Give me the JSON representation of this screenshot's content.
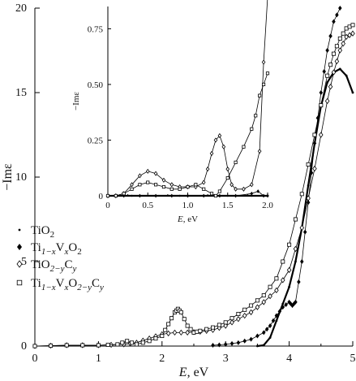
{
  "chart_data": [
    {
      "type": "line",
      "xlabel": "E, eV",
      "ylabel": "−Imε",
      "xlim": [
        0,
        5
      ],
      "ylim": [
        0,
        20
      ],
      "x_ticks": [
        "0",
        "1",
        "2",
        "3",
        "4",
        "5"
      ],
      "y_ticks": [
        "0",
        "5",
        "10",
        "15",
        "20"
      ],
      "grid": false,
      "legend_position": "left-middle",
      "series": [
        {
          "name": "TiO2",
          "legend_base": "TiO",
          "legend_sub": "2",
          "marker": "small-dot",
          "x": [
            3.5,
            3.6,
            3.7,
            3.8,
            3.9,
            4.0,
            4.1,
            4.2,
            4.3,
            4.4,
            4.5,
            4.6,
            4.7,
            4.8,
            4.9,
            5.0
          ],
          "values": [
            0.0,
            0.05,
            0.5,
            1.5,
            2.5,
            3.5,
            5.0,
            7.0,
            9.5,
            12.0,
            14.2,
            15.6,
            16.2,
            16.4,
            16.0,
            15.0
          ]
        },
        {
          "name": "Ti1−xVxO2",
          "legend_base": "Ti",
          "legend_sub": "1−x",
          "legend_mid": "V",
          "legend_sub2": "x",
          "legend_mid2": "O",
          "legend_sub3": "2",
          "marker": "filled-diamond",
          "x": [
            2.8,
            3.0,
            3.2,
            3.4,
            3.6,
            3.7,
            3.8,
            3.9,
            4.0,
            4.05,
            4.1,
            4.2,
            4.3,
            4.4,
            4.5,
            4.6,
            4.7,
            4.8
          ],
          "values": [
            0.05,
            0.1,
            0.2,
            0.4,
            0.8,
            1.2,
            1.8,
            2.3,
            2.6,
            2.4,
            2.6,
            5.0,
            8.5,
            12.0,
            15.0,
            17.5,
            19.2,
            20.0
          ]
        },
        {
          "name": "TiO2−yCy",
          "legend_base": "TiO",
          "legend_sub": "2−y",
          "legend_mid": "C",
          "legend_sub2": "y",
          "marker": "open-diamond",
          "x": [
            0.0,
            0.5,
            1.0,
            1.4,
            1.6,
            1.8,
            2.0,
            2.2,
            2.4,
            2.6,
            2.8,
            3.0,
            3.2,
            3.4,
            3.6,
            3.8,
            4.0,
            4.2,
            4.4,
            4.6,
            4.7,
            4.8,
            4.9,
            5.0
          ],
          "values": [
            0.0,
            0.05,
            0.05,
            0.1,
            0.2,
            0.45,
            0.7,
            0.8,
            0.8,
            0.85,
            0.95,
            1.2,
            1.6,
            2.0,
            2.6,
            3.3,
            4.5,
            7.0,
            10.5,
            14.5,
            16.2,
            17.5,
            18.3,
            18.5
          ]
        },
        {
          "name": "Ti1−xVxO2−yCy",
          "legend_base": "Ti",
          "legend_sub": "1−x",
          "legend_mid": "V",
          "legend_sub2": "x",
          "legend_mid2": "O",
          "legend_sub3": "2−y",
          "legend_mid3": "C",
          "legend_sub4": "y",
          "marker": "open-square",
          "x": [
            0.0,
            0.5,
            1.0,
            1.3,
            1.45,
            1.6,
            1.8,
            2.0,
            2.1,
            2.2,
            2.25,
            2.3,
            2.4,
            2.5,
            2.6,
            2.8,
            3.0,
            3.2,
            3.4,
            3.6,
            3.8,
            4.0,
            4.2,
            4.4,
            4.6,
            4.7,
            4.8,
            4.9,
            5.0
          ],
          "values": [
            0.0,
            0.05,
            0.05,
            0.1,
            0.3,
            0.1,
            0.3,
            0.6,
            1.3,
            2.0,
            2.2,
            2.0,
            1.2,
            0.8,
            0.9,
            1.1,
            1.4,
            1.9,
            2.4,
            3.0,
            4.0,
            6.0,
            9.0,
            12.5,
            16.0,
            17.3,
            18.2,
            18.8,
            19.0
          ]
        }
      ]
    },
    {
      "type": "line",
      "xlabel": "E, eV",
      "ylabel": "−Imε",
      "xlim": [
        0,
        2.0
      ],
      "ylim": [
        0,
        0.85
      ],
      "x_ticks": [
        "0",
        "0.5",
        "1.0",
        "1.5",
        "2.0"
      ],
      "y_ticks": [
        "0",
        "0.25",
        "0.50",
        "0.75"
      ],
      "grid": false,
      "series": [
        {
          "name": "TiO2",
          "marker": "small-dot",
          "x": [
            0.0,
            0.3,
            0.6,
            0.9,
            1.2,
            1.5,
            1.8,
            2.0
          ],
          "values": [
            0.0,
            0.0,
            0.0,
            0.0,
            0.0,
            0.0,
            0.0,
            0.0
          ]
        },
        {
          "name": "Ti1−xVxO2",
          "marker": "filled-diamond",
          "x": [
            0.0,
            0.2,
            0.4,
            0.6,
            0.8,
            1.0,
            1.2,
            1.4,
            1.6,
            1.8,
            1.88,
            1.95,
            2.0
          ],
          "values": [
            0.0,
            0.0,
            0.0,
            0.0,
            0.0,
            0.0,
            0.0,
            0.0,
            0.0,
            0.01,
            0.02,
            0.0,
            0.0
          ]
        },
        {
          "name": "TiO2−yCy",
          "marker": "open-diamond",
          "x": [
            0.0,
            0.1,
            0.2,
            0.3,
            0.4,
            0.5,
            0.6,
            0.7,
            0.8,
            0.9,
            1.0,
            1.1,
            1.2,
            1.25,
            1.3,
            1.35,
            1.4,
            1.45,
            1.5,
            1.55,
            1.6,
            1.7,
            1.8,
            1.9,
            1.95,
            2.0
          ],
          "values": [
            0.0,
            0.0,
            0.01,
            0.05,
            0.09,
            0.11,
            0.1,
            0.07,
            0.05,
            0.04,
            0.04,
            0.04,
            0.06,
            0.12,
            0.19,
            0.25,
            0.27,
            0.22,
            0.12,
            0.05,
            0.03,
            0.03,
            0.05,
            0.2,
            0.6,
            0.9
          ]
        },
        {
          "name": "Ti1−xVxO2−yCy",
          "marker": "open-square",
          "x": [
            0.0,
            0.1,
            0.2,
            0.3,
            0.4,
            0.5,
            0.6,
            0.7,
            0.8,
            0.9,
            1.0,
            1.1,
            1.2,
            1.3,
            1.35,
            1.4,
            1.5,
            1.6,
            1.7,
            1.8,
            1.85,
            1.9,
            1.95,
            2.0
          ],
          "values": [
            0.0,
            0.0,
            0.01,
            0.03,
            0.05,
            0.06,
            0.05,
            0.04,
            0.03,
            0.03,
            0.04,
            0.05,
            0.03,
            0.01,
            0.0,
            0.02,
            0.08,
            0.15,
            0.22,
            0.3,
            0.36,
            0.45,
            0.5,
            0.55
          ]
        }
      ]
    }
  ]
}
